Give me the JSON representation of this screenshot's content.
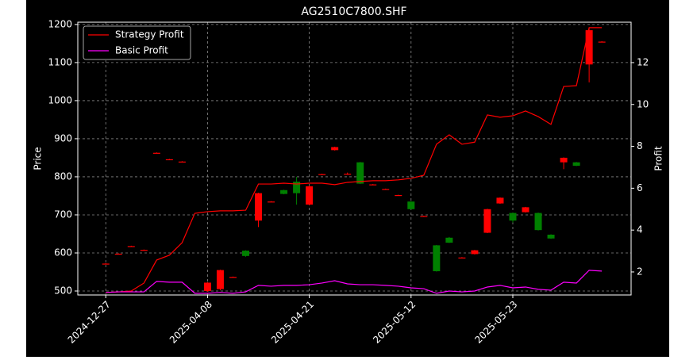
{
  "chart_data": {
    "type": "candlestick",
    "title": "AG2510C7800.SHF",
    "ylabel": "Price",
    "y2label": "Profit",
    "categories": [
      "2024-12-27",
      null,
      null,
      null,
      null,
      null,
      null,
      null,
      "2025-04-08",
      null,
      null,
      null,
      null,
      null,
      null,
      null,
      "2025-04-21",
      null,
      null,
      null,
      null,
      null,
      null,
      null,
      "2025-05-12",
      null,
      null,
      null,
      null,
      null,
      null,
      null,
      "2025-05-23",
      null,
      null,
      null,
      null,
      null,
      null,
      null
    ],
    "open": [
      572,
      598,
      618,
      608,
      863,
      846,
      840,
      null,
      500,
      505,
      537,
      606,
      685,
      735,
      765,
      787,
      727,
      807,
      870,
      808,
      838,
      780,
      768,
      752,
      735,
      697,
      620,
      640,
      588,
      597,
      653,
      730,
      705,
      707,
      705,
      648,
      838,
      838,
      1095,
      1155
    ],
    "high": [
      573,
      599,
      619,
      609,
      864,
      847,
      841,
      null,
      523,
      556,
      538,
      607,
      758,
      736,
      766,
      800,
      777,
      808,
      879,
      811,
      839,
      781,
      769,
      753,
      736,
      698,
      621,
      642,
      589,
      608,
      716,
      746,
      706,
      721,
      706,
      649,
      851,
      839,
      1192,
      1156
    ],
    "low": [
      571,
      597,
      617,
      607,
      862,
      845,
      839,
      null,
      498,
      502,
      536,
      590,
      668,
      734,
      754,
      727,
      725,
      806,
      869,
      805,
      781,
      779,
      767,
      751,
      714,
      696,
      551,
      626,
      587,
      596,
      652,
      729,
      680,
      706,
      659,
      637,
      820,
      828,
      1048,
      1154
    ],
    "close": [
      572,
      598,
      618,
      608,
      863,
      846,
      840,
      null,
      522,
      555,
      537,
      592,
      757,
      735,
      755,
      757,
      775,
      807,
      878,
      808,
      782,
      780,
      768,
      752,
      715,
      697,
      552,
      627,
      588,
      607,
      715,
      745,
      685,
      720,
      660,
      638,
      850,
      829,
      1185,
      1155
    ],
    "up_color": "#ff0000",
    "down_color": "#008000",
    "series": [
      {
        "name": "Strategy Profit",
        "color": "#ff0000",
        "axis": "y2",
        "values": [
          1.02,
          1.05,
          1.09,
          1.47,
          2.57,
          2.8,
          3.4,
          4.8,
          4.88,
          4.92,
          4.92,
          4.95,
          6.2,
          6.2,
          6.24,
          6.2,
          6.24,
          6.24,
          6.17,
          6.28,
          6.32,
          6.36,
          6.36,
          6.4,
          6.47,
          6.62,
          8.1,
          8.55,
          8.1,
          8.2,
          9.5,
          9.39,
          9.46,
          9.69,
          9.42,
          9.05,
          10.86,
          10.9,
          13.67,
          13.67
        ]
      },
      {
        "name": "Basic Profit",
        "color": "#ff00ff",
        "axis": "y2",
        "values": [
          1.02,
          1.05,
          1.05,
          1.05,
          1.55,
          1.51,
          1.51,
          0.98,
          0.98,
          1.02,
          0.98,
          1.05,
          1.36,
          1.32,
          1.36,
          1.36,
          1.39,
          1.47,
          1.58,
          1.43,
          1.39,
          1.39,
          1.36,
          1.32,
          1.24,
          1.2,
          0.98,
          1.09,
          1.05,
          1.09,
          1.28,
          1.36,
          1.24,
          1.28,
          1.17,
          1.13,
          1.51,
          1.47,
          2.08,
          2.04
        ]
      }
    ],
    "xlim": [
      -2.2,
      41.3
    ],
    "ylim": [
      489.6,
      1206
    ],
    "yticks": [
      500,
      600,
      700,
      800,
      900,
      1000,
      1100,
      1200
    ],
    "y2lim": [
      0.9,
      13.93
    ],
    "y2ticks": [
      2,
      4,
      6,
      8,
      10,
      12
    ],
    "grid": true,
    "legend": "upper left"
  }
}
